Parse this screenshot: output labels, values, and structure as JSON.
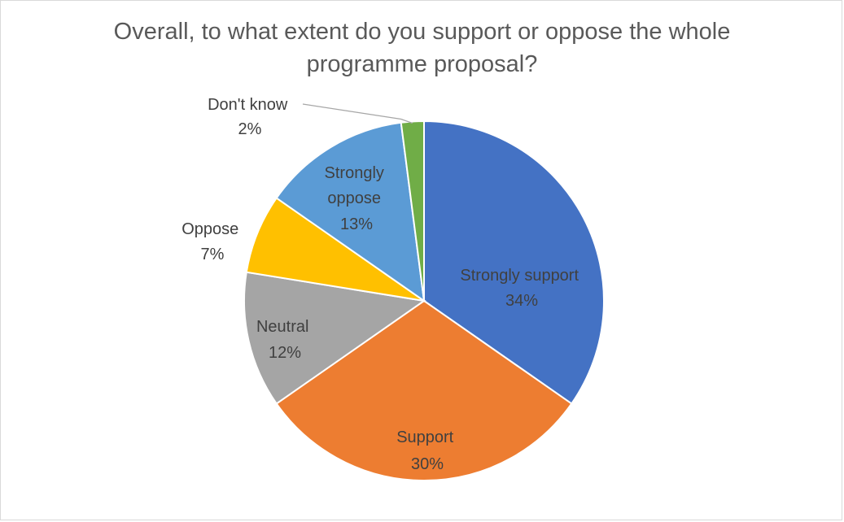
{
  "chart_data": {
    "type": "pie",
    "title_lines": [
      "Overall, to what extent do you support or oppose the whole",
      "programme proposal?"
    ],
    "slices": [
      {
        "label": "Strongly support",
        "value_label": "34%",
        "value": 34,
        "color": "#4472C4"
      },
      {
        "label": "Support",
        "value_label": "30%",
        "value": 30,
        "color": "#ED7D31"
      },
      {
        "label": "Neutral",
        "value_label": "12%",
        "value": 12,
        "color": "#A5A5A5"
      },
      {
        "label": "Oppose",
        "value_label": "7%",
        "value": 7,
        "color": "#FFC000"
      },
      {
        "label": "Strongly oppose",
        "value_label": "13%",
        "value": 13,
        "color": "#5B9BD5"
      },
      {
        "label": "Don't know",
        "value_label": "2%",
        "value": 2,
        "color": "#70AD47"
      }
    ],
    "legend": "none"
  }
}
